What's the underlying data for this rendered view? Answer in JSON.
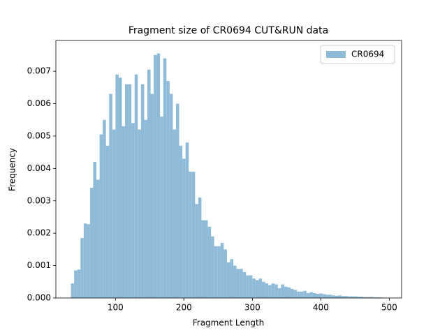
{
  "chart_data": {
    "type": "histogram",
    "title": "Fragment size of CR0694 CUT&RUN data",
    "xlabel": "Fragment Length",
    "ylabel": "Frequency",
    "bins": [
      35,
      39.65,
      44.3,
      48.95,
      53.6,
      58.25,
      62.9,
      67.55,
      72.2,
      76.85,
      81.5,
      86.15,
      90.8,
      95.45,
      100.1,
      104.75,
      109.4,
      114.05,
      118.7,
      123.35,
      128,
      132.65,
      137.3,
      141.95,
      146.6,
      151.25,
      155.9,
      160.55,
      165.2,
      169.85,
      174.5,
      179.15,
      183.8,
      188.45,
      193.1,
      197.75,
      202.4,
      207.05,
      211.7,
      216.35,
      221,
      225.65,
      230.3,
      234.95,
      239.6,
      244.25,
      248.9,
      253.55,
      258.2,
      262.85,
      267.5,
      272.15,
      276.8,
      281.45,
      286.1,
      290.75,
      295.4,
      300.05,
      304.7,
      309.35,
      314,
      318.65,
      323.3,
      327.95,
      332.6,
      337.25,
      341.9,
      346.55,
      351.2,
      355.85,
      360.5,
      365.15,
      369.8,
      374.45,
      379.1,
      383.75,
      388.4,
      393.05,
      397.7,
      402.35,
      407,
      411.65,
      416.3,
      420.95,
      425.6,
      430.25,
      434.9,
      439.55,
      444.2,
      448.85,
      453.5,
      458.15,
      462.8,
      467.45,
      472.1,
      476.75,
      481.4,
      486.05,
      490.7,
      495.35,
      500
    ],
    "series": [
      {
        "name": "CR0694",
        "color": "#8fbbd9",
        "values": [
          0.00045,
          0.00085,
          0.00088,
          0.00185,
          0.0023,
          0.00228,
          0.0034,
          0.0042,
          0.00365,
          0.00505,
          0.0055,
          0.0047,
          0.0063,
          0.0052,
          0.0069,
          0.0068,
          0.0053,
          0.0066,
          0.0066,
          0.0054,
          0.0069,
          0.0052,
          0.0066,
          0.0055,
          0.00705,
          0.0063,
          0.0075,
          0.00755,
          0.0056,
          0.0074,
          0.0067,
          0.0063,
          0.0052,
          0.006,
          0.0047,
          0.0043,
          0.0048,
          0.0039,
          0.0039,
          0.0029,
          0.0031,
          0.0024,
          0.0024,
          0.0022,
          0.0019,
          0.0016,
          0.0016,
          0.0017,
          0.0015,
          0.0011,
          0.0012,
          0.001,
          0.0009,
          0.0009,
          0.0008,
          0.0007,
          0.0007,
          0.0006,
          0.00055,
          0.0006,
          0.0005,
          0.00045,
          0.0004,
          0.00045,
          0.00042,
          0.0003,
          0.00042,
          0.00035,
          0.00033,
          0.00028,
          0.00025,
          0.0002,
          0.0002,
          0.00022,
          0.00015,
          0.00018,
          0.00015,
          0.00013,
          0.00014,
          0.00012,
          0.0001,
          0.0001,
          8e-05,
          7e-05,
          8e-05,
          6e-05,
          6e-05,
          5e-05,
          5e-05,
          5e-05,
          4e-05,
          4e-05,
          3e-05,
          3e-05,
          3e-05,
          2e-05,
          2e-05,
          2e-05,
          1e-05,
          1e-05
        ]
      }
    ],
    "xlim": [
      13,
      518
    ],
    "ylim": [
      0,
      0.00795
    ],
    "xticks": [
      100,
      200,
      300,
      400,
      500
    ],
    "yticks": [
      {
        "value": 0,
        "label": "0.000"
      },
      0.001,
      0.002,
      0.003,
      0.004,
      0.005,
      0.006,
      0.007
    ],
    "legend": "upper right"
  }
}
